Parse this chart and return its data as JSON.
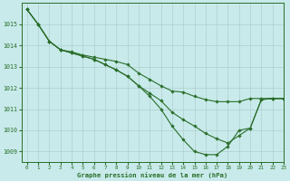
{
  "title": "Graphe pression niveau de la mer (hPa)",
  "background_color": "#c8eaea",
  "grid_color": "#b0d0d0",
  "line_color": "#2a6e2a",
  "marker_color": "#2a6e2a",
  "xlim": [
    -0.5,
    23
  ],
  "ylim": [
    1008.5,
    1016.0
  ],
  "yticks": [
    1009,
    1010,
    1011,
    1012,
    1013,
    1014,
    1015
  ],
  "xticks": [
    0,
    1,
    2,
    3,
    4,
    5,
    6,
    7,
    8,
    9,
    10,
    11,
    12,
    13,
    14,
    15,
    16,
    17,
    18,
    19,
    20,
    21,
    22,
    23
  ],
  "series": [
    [
      1015.7,
      1015.0,
      1014.2,
      1013.8,
      1013.7,
      1013.55,
      1013.45,
      1013.35,
      1013.25,
      1013.1,
      1012.7,
      1012.4,
      1012.1,
      1011.85,
      1011.8,
      1011.6,
      1011.45,
      1011.35,
      1011.35,
      1011.35,
      1011.5,
      1011.5,
      1011.5,
      1011.5
    ],
    [
      1015.7,
      1015.0,
      1014.2,
      1013.8,
      1013.65,
      1013.5,
      1013.35,
      1013.1,
      1012.85,
      1012.55,
      1012.1,
      1011.75,
      1011.4,
      1010.85,
      1010.5,
      1010.2,
      1009.85,
      1009.6,
      1009.4,
      1009.75,
      1010.1,
      1011.45,
      1011.5,
      1011.5
    ],
    [
      1015.7,
      1015.0,
      1014.2,
      1013.8,
      1013.65,
      1013.5,
      1013.35,
      1013.1,
      1012.85,
      1012.55,
      1012.1,
      1011.6,
      1011.0,
      1010.2,
      1009.55,
      1009.0,
      1008.85,
      1008.85,
      1009.25,
      1010.0,
      1010.1,
      1011.45,
      1011.5,
      1011.5
    ]
  ]
}
